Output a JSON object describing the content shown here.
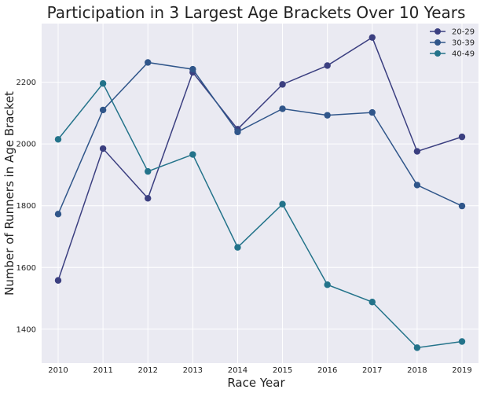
{
  "chart_data": {
    "type": "line",
    "title": "Participation in 3 Largest Age Brackets Over 10 Years",
    "xlabel": "Race Year",
    "ylabel": "Number of Runners in Age Bracket",
    "x": [
      2010,
      2011,
      2012,
      2013,
      2014,
      2015,
      2016,
      2017,
      2018,
      2019
    ],
    "ylim": [
      1290,
      2390
    ],
    "yticks": [
      1400,
      1600,
      1800,
      2000,
      2200
    ],
    "grid": true,
    "legend_position": "top-right",
    "background": "#eaeaf2",
    "series": [
      {
        "name": "20-29",
        "color": "#3b3f80",
        "values": [
          1558,
          1985,
          1824,
          2232,
          2048,
          2193,
          2254,
          2345,
          1976,
          2023
        ]
      },
      {
        "name": "30-39",
        "color": "#30568a",
        "values": [
          1773,
          2110,
          2264,
          2242,
          2039,
          2114,
          2093,
          2102,
          1867,
          1799
        ]
      },
      {
        "name": "40-49",
        "color": "#23738a",
        "values": [
          2015,
          2196,
          1911,
          1966,
          1665,
          1805,
          1544,
          1488,
          1340,
          1360
        ]
      }
    ]
  }
}
